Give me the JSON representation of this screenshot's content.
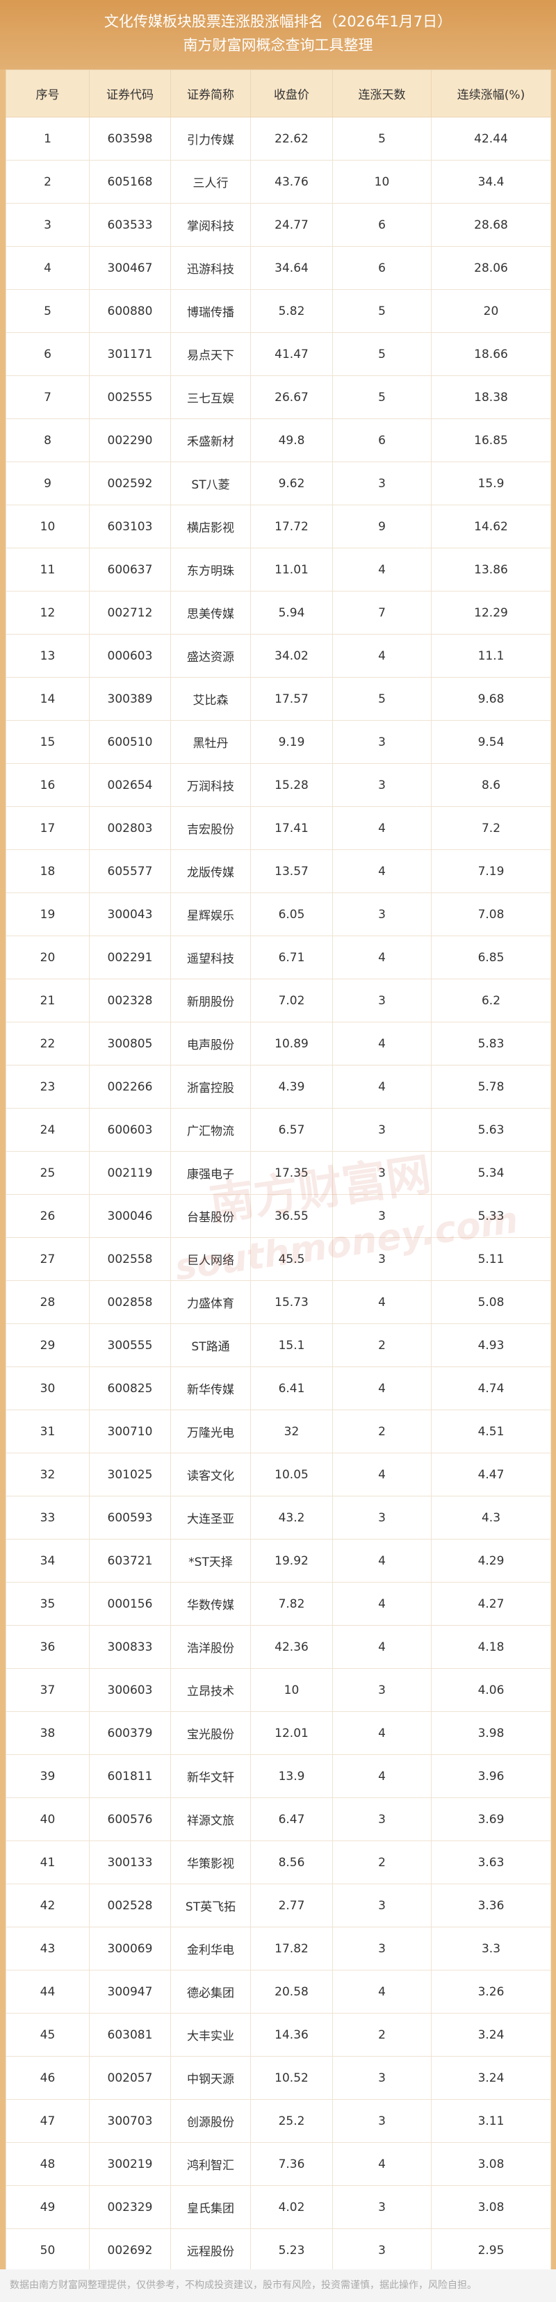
{
  "header": {
    "title": "文化传媒板块股票连涨股涨幅排名（2026年1月7日）",
    "subtitle": "南方财富网概念查询工具整理"
  },
  "table": {
    "header": [
      "序号",
      "证券代码",
      "证券简称",
      "收盘价",
      "连涨天数",
      "连续涨幅(%)"
    ],
    "rows": [
      [
        "1",
        "603598",
        "引力传媒",
        "22.62",
        "5",
        "42.44"
      ],
      [
        "2",
        "605168",
        "三人行",
        "43.76",
        "10",
        "34.4"
      ],
      [
        "3",
        "603533",
        "掌阅科技",
        "24.77",
        "6",
        "28.68"
      ],
      [
        "4",
        "300467",
        "迅游科技",
        "34.64",
        "6",
        "28.06"
      ],
      [
        "5",
        "600880",
        "博瑞传播",
        "5.82",
        "5",
        "20"
      ],
      [
        "6",
        "301171",
        "易点天下",
        "41.47",
        "5",
        "18.66"
      ],
      [
        "7",
        "002555",
        "三七互娱",
        "26.67",
        "5",
        "18.38"
      ],
      [
        "8",
        "002290",
        "禾盛新材",
        "49.8",
        "6",
        "16.85"
      ],
      [
        "9",
        "002592",
        "ST八菱",
        "9.62",
        "3",
        "15.9"
      ],
      [
        "10",
        "603103",
        "横店影视",
        "17.72",
        "9",
        "14.62"
      ],
      [
        "11",
        "600637",
        "东方明珠",
        "11.01",
        "4",
        "13.86"
      ],
      [
        "12",
        "002712",
        "思美传媒",
        "5.94",
        "7",
        "12.29"
      ],
      [
        "13",
        "000603",
        "盛达资源",
        "34.02",
        "4",
        "11.1"
      ],
      [
        "14",
        "300389",
        "艾比森",
        "17.57",
        "5",
        "9.68"
      ],
      [
        "15",
        "600510",
        "黑牡丹",
        "9.19",
        "3",
        "9.54"
      ],
      [
        "16",
        "002654",
        "万润科技",
        "15.28",
        "3",
        "8.6"
      ],
      [
        "17",
        "002803",
        "吉宏股份",
        "17.41",
        "4",
        "7.2"
      ],
      [
        "18",
        "605577",
        "龙版传媒",
        "13.57",
        "4",
        "7.19"
      ],
      [
        "19",
        "300043",
        "星辉娱乐",
        "6.05",
        "3",
        "7.08"
      ],
      [
        "20",
        "002291",
        "遥望科技",
        "6.71",
        "4",
        "6.85"
      ],
      [
        "21",
        "002328",
        "新朋股份",
        "7.02",
        "3",
        "6.2"
      ],
      [
        "22",
        "300805",
        "电声股份",
        "10.89",
        "4",
        "5.83"
      ],
      [
        "23",
        "002266",
        "浙富控股",
        "4.39",
        "4",
        "5.78"
      ],
      [
        "24",
        "600603",
        "广汇物流",
        "6.57",
        "3",
        "5.63"
      ],
      [
        "25",
        "002119",
        "康强电子",
        "17.35",
        "3",
        "5.34"
      ],
      [
        "26",
        "300046",
        "台基股份",
        "36.55",
        "3",
        "5.33"
      ],
      [
        "27",
        "002558",
        "巨人网络",
        "45.5",
        "3",
        "5.11"
      ],
      [
        "28",
        "002858",
        "力盛体育",
        "15.73",
        "4",
        "5.08"
      ],
      [
        "29",
        "300555",
        "ST路通",
        "15.1",
        "2",
        "4.93"
      ],
      [
        "30",
        "600825",
        "新华传媒",
        "6.41",
        "4",
        "4.74"
      ],
      [
        "31",
        "300710",
        "万隆光电",
        "32",
        "2",
        "4.51"
      ],
      [
        "32",
        "301025",
        "读客文化",
        "10.05",
        "4",
        "4.47"
      ],
      [
        "33",
        "600593",
        "大连圣亚",
        "43.2",
        "3",
        "4.3"
      ],
      [
        "34",
        "603721",
        "*ST天择",
        "19.92",
        "4",
        "4.29"
      ],
      [
        "35",
        "000156",
        "华数传媒",
        "7.82",
        "4",
        "4.27"
      ],
      [
        "36",
        "300833",
        "浩洋股份",
        "42.36",
        "4",
        "4.18"
      ],
      [
        "37",
        "300603",
        "立昂技术",
        "10",
        "3",
        "4.06"
      ],
      [
        "38",
        "600379",
        "宝光股份",
        "12.01",
        "4",
        "3.98"
      ],
      [
        "39",
        "601811",
        "新华文轩",
        "13.9",
        "4",
        "3.96"
      ],
      [
        "40",
        "600576",
        "祥源文旅",
        "6.47",
        "3",
        "3.69"
      ],
      [
        "41",
        "300133",
        "华策影视",
        "8.56",
        "2",
        "3.63"
      ],
      [
        "42",
        "002528",
        "ST英飞拓",
        "2.77",
        "3",
        "3.36"
      ],
      [
        "43",
        "300069",
        "金利华电",
        "17.82",
        "3",
        "3.3"
      ],
      [
        "44",
        "300947",
        "德必集团",
        "20.58",
        "4",
        "3.26"
      ],
      [
        "45",
        "603081",
        "大丰实业",
        "14.36",
        "2",
        "3.24"
      ],
      [
        "46",
        "002057",
        "中钢天源",
        "10.52",
        "3",
        "3.24"
      ],
      [
        "47",
        "300703",
        "创源股份",
        "25.2",
        "3",
        "3.11"
      ],
      [
        "48",
        "300219",
        "鸿利智汇",
        "7.36",
        "4",
        "3.08"
      ],
      [
        "49",
        "002329",
        "皇氏集团",
        "4.02",
        "3",
        "3.08"
      ],
      [
        "50",
        "002692",
        "远程股份",
        "5.23",
        "3",
        "2.95"
      ]
    ]
  },
  "watermark": {
    "name": "南方财富网",
    "url": "southmoney.com"
  },
  "footer": "数据由南方财富网整理提供，仅供参考，不构成投资建议，股市有风险，投资需谨慎，据此操作，风险自担。"
}
